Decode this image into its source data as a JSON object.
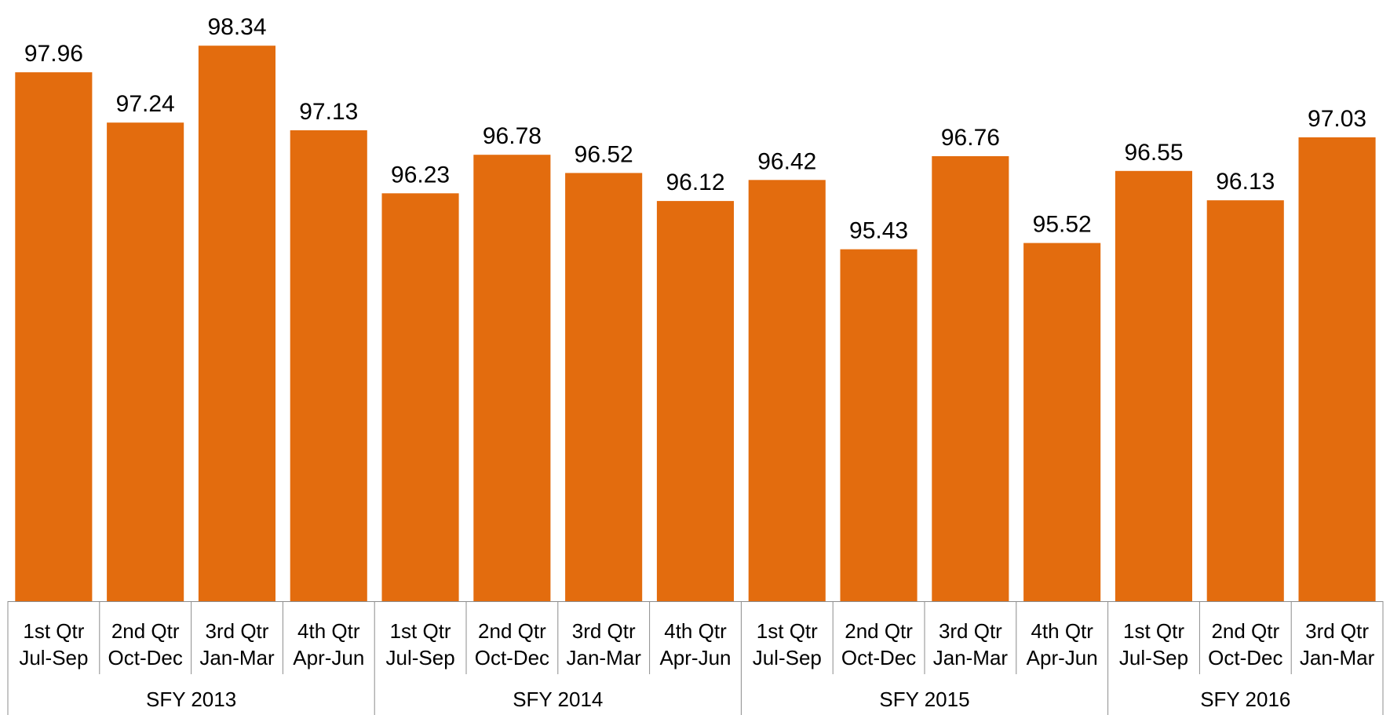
{
  "chart_data": {
    "type": "bar",
    "colors": {
      "bar": "#E36C0E"
    },
    "categories": [
      {
        "qtr": "1st Qtr",
        "months": "Jul-Sep",
        "group": "SFY 2013"
      },
      {
        "qtr": "2nd Qtr",
        "months": "Oct-Dec",
        "group": "SFY 2013"
      },
      {
        "qtr": "3rd Qtr",
        "months": "Jan-Mar",
        "group": "SFY 2013"
      },
      {
        "qtr": "4th Qtr",
        "months": "Apr-Jun",
        "group": "SFY 2013"
      },
      {
        "qtr": "1st Qtr",
        "months": "Jul-Sep",
        "group": "SFY 2014"
      },
      {
        "qtr": "2nd Qtr",
        "months": "Oct-Dec",
        "group": "SFY 2014"
      },
      {
        "qtr": "3rd Qtr",
        "months": "Jan-Mar",
        "group": "SFY 2014"
      },
      {
        "qtr": "4th Qtr",
        "months": "Apr-Jun",
        "group": "SFY 2014"
      },
      {
        "qtr": "1st Qtr",
        "months": "Jul-Sep",
        "group": "SFY 2015"
      },
      {
        "qtr": "2nd Qtr",
        "months": "Oct-Dec",
        "group": "SFY 2015"
      },
      {
        "qtr": "3rd Qtr",
        "months": "Jan-Mar",
        "group": "SFY 2015"
      },
      {
        "qtr": "4th Qtr",
        "months": "Apr-Jun",
        "group": "SFY 2015"
      },
      {
        "qtr": "1st Qtr",
        "months": "Jul-Sep",
        "group": "SFY 2016"
      },
      {
        "qtr": "2nd Qtr",
        "months": "Oct-Dec",
        "group": "SFY 2016"
      },
      {
        "qtr": "3rd Qtr",
        "months": "Jan-Mar",
        "group": "SFY 2016"
      }
    ],
    "groups": [
      "SFY 2013",
      "SFY 2014",
      "SFY 2015",
      "SFY 2016"
    ],
    "values": [
      97.96,
      97.24,
      98.34,
      97.13,
      96.23,
      96.78,
      96.52,
      96.12,
      96.42,
      95.43,
      96.76,
      95.52,
      96.55,
      96.13,
      97.03
    ],
    "value_labels": [
      "97.96",
      "97.24",
      "98.34",
      "97.13",
      "96.23",
      "96.78",
      "96.52",
      "96.12",
      "96.42",
      "95.43",
      "96.76",
      "95.52",
      "96.55",
      "96.13",
      "97.03"
    ],
    "ylim": [
      90.4,
      98.6
    ],
    "grid": false,
    "legend": "none"
  }
}
